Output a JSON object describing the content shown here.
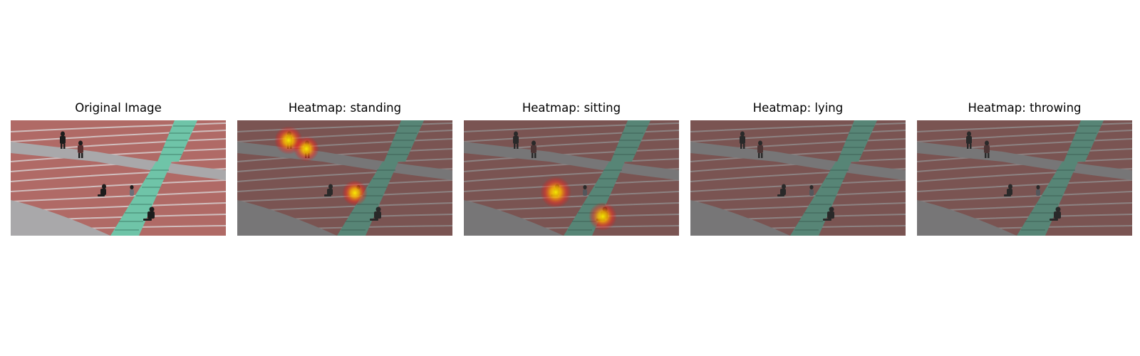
{
  "panels": [
    {
      "title": "Original Image",
      "overlay": "none"
    },
    {
      "title": "Heatmap: standing",
      "overlay": "standing"
    },
    {
      "title": "Heatmap: sitting",
      "overlay": "sitting"
    },
    {
      "title": "Heatmap: lying",
      "overlay": "none-dim"
    },
    {
      "title": "Heatmap: throwing",
      "overlay": "none-dim"
    }
  ],
  "colors": {
    "seat_red": "#b06a66",
    "walkway_gray": "#a9a8aa",
    "stair_teal": "#6fc4a8",
    "heat_core": "#fff200",
    "heat_edge": "#ff2a1a"
  }
}
